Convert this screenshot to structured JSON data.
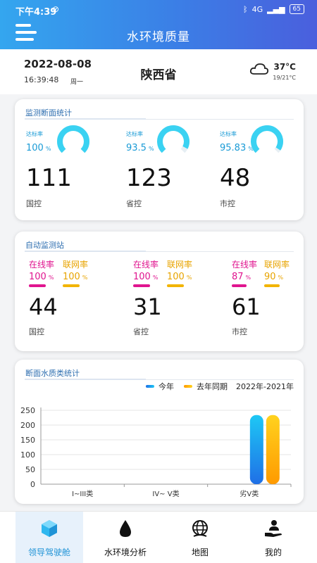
{
  "status_bar": {
    "time": "下午4:39",
    "mute_glyph": "⊘",
    "net": "4G",
    "battery": "65"
  },
  "header": {
    "title": "水环境质量"
  },
  "info": {
    "date": "2022-08-08",
    "time": "16:39:48",
    "weekday": "周一",
    "province": "陕西省",
    "weather_icon": "cloud-icon",
    "temp": "37°C",
    "temp_range": "19/21°C"
  },
  "section_stats": {
    "title": "监测断面统计",
    "items": [
      {
        "rate_label": "达标率",
        "rate_value": "100",
        "rate_unit": "%",
        "rate_fraction": 1.0,
        "count": "111",
        "label": "国控"
      },
      {
        "rate_label": "达标率",
        "rate_value": "93.5",
        "rate_unit": "%",
        "rate_fraction": 0.935,
        "count": "123",
        "label": "省控"
      },
      {
        "rate_label": "达标率",
        "rate_value": "95.83",
        "rate_unit": "%",
        "rate_fraction": 0.9583,
        "count": "48",
        "label": "市控"
      }
    ]
  },
  "section_auto": {
    "title": "自动监测站",
    "items": [
      {
        "online_label": "在线率",
        "online_value": "100",
        "online_unit": "%",
        "online_fraction": 1.0,
        "net_label": "联网率",
        "net_value": "100",
        "net_unit": "%",
        "net_fraction": 1.0,
        "count": "44",
        "label": "国控"
      },
      {
        "online_label": "在线率",
        "online_value": "100",
        "online_unit": "%",
        "online_fraction": 1.0,
        "net_label": "联网率",
        "net_value": "100",
        "net_unit": "%",
        "net_fraction": 1.0,
        "count": "31",
        "label": "省控"
      },
      {
        "online_label": "在线率",
        "online_value": "87",
        "online_unit": "%",
        "online_fraction": 0.87,
        "net_label": "联网率",
        "net_value": "90",
        "net_unit": "%",
        "net_fraction": 0.9,
        "count": "61",
        "label": "市控"
      }
    ]
  },
  "section_quality": {
    "title": "断面水质类统计",
    "legend_this_year": "今年",
    "legend_last_year": "去年同期",
    "period": "2022年-2021年"
  },
  "chart_data": {
    "type": "bar",
    "categories": [
      "I~III类",
      "IV~ V类",
      "劣V类"
    ],
    "series": [
      {
        "name": "今年",
        "values": [
          0,
          0,
          234
        ]
      },
      {
        "name": "去年同期",
        "values": [
          0,
          0,
          234
        ]
      }
    ],
    "ylim": [
      0,
      250
    ],
    "yticks": [
      "0",
      "50",
      "100",
      "150",
      "200",
      "250"
    ],
    "grid": true,
    "legend": "top-right",
    "colors": {
      "this_year_top": "#1ec8f5",
      "this_year_bottom": "#1f6fe6",
      "last_year_top": "#ffd21e",
      "last_year_bottom": "#ff9a00"
    }
  },
  "nav": {
    "items": [
      {
        "label": "领导驾驶舱",
        "icon": "cube-icon"
      },
      {
        "label": "水环境分析",
        "icon": "water-drop-icon"
      },
      {
        "label": "地图",
        "icon": "globe-icon"
      },
      {
        "label": "我的",
        "icon": "user-hand-icon"
      }
    ]
  },
  "colors": {
    "accent": "#3b7fe6",
    "title_blue": "#2f6fb0",
    "gauge": "#3ad2f2",
    "online": "#e0158f",
    "net": "#e8a400"
  }
}
